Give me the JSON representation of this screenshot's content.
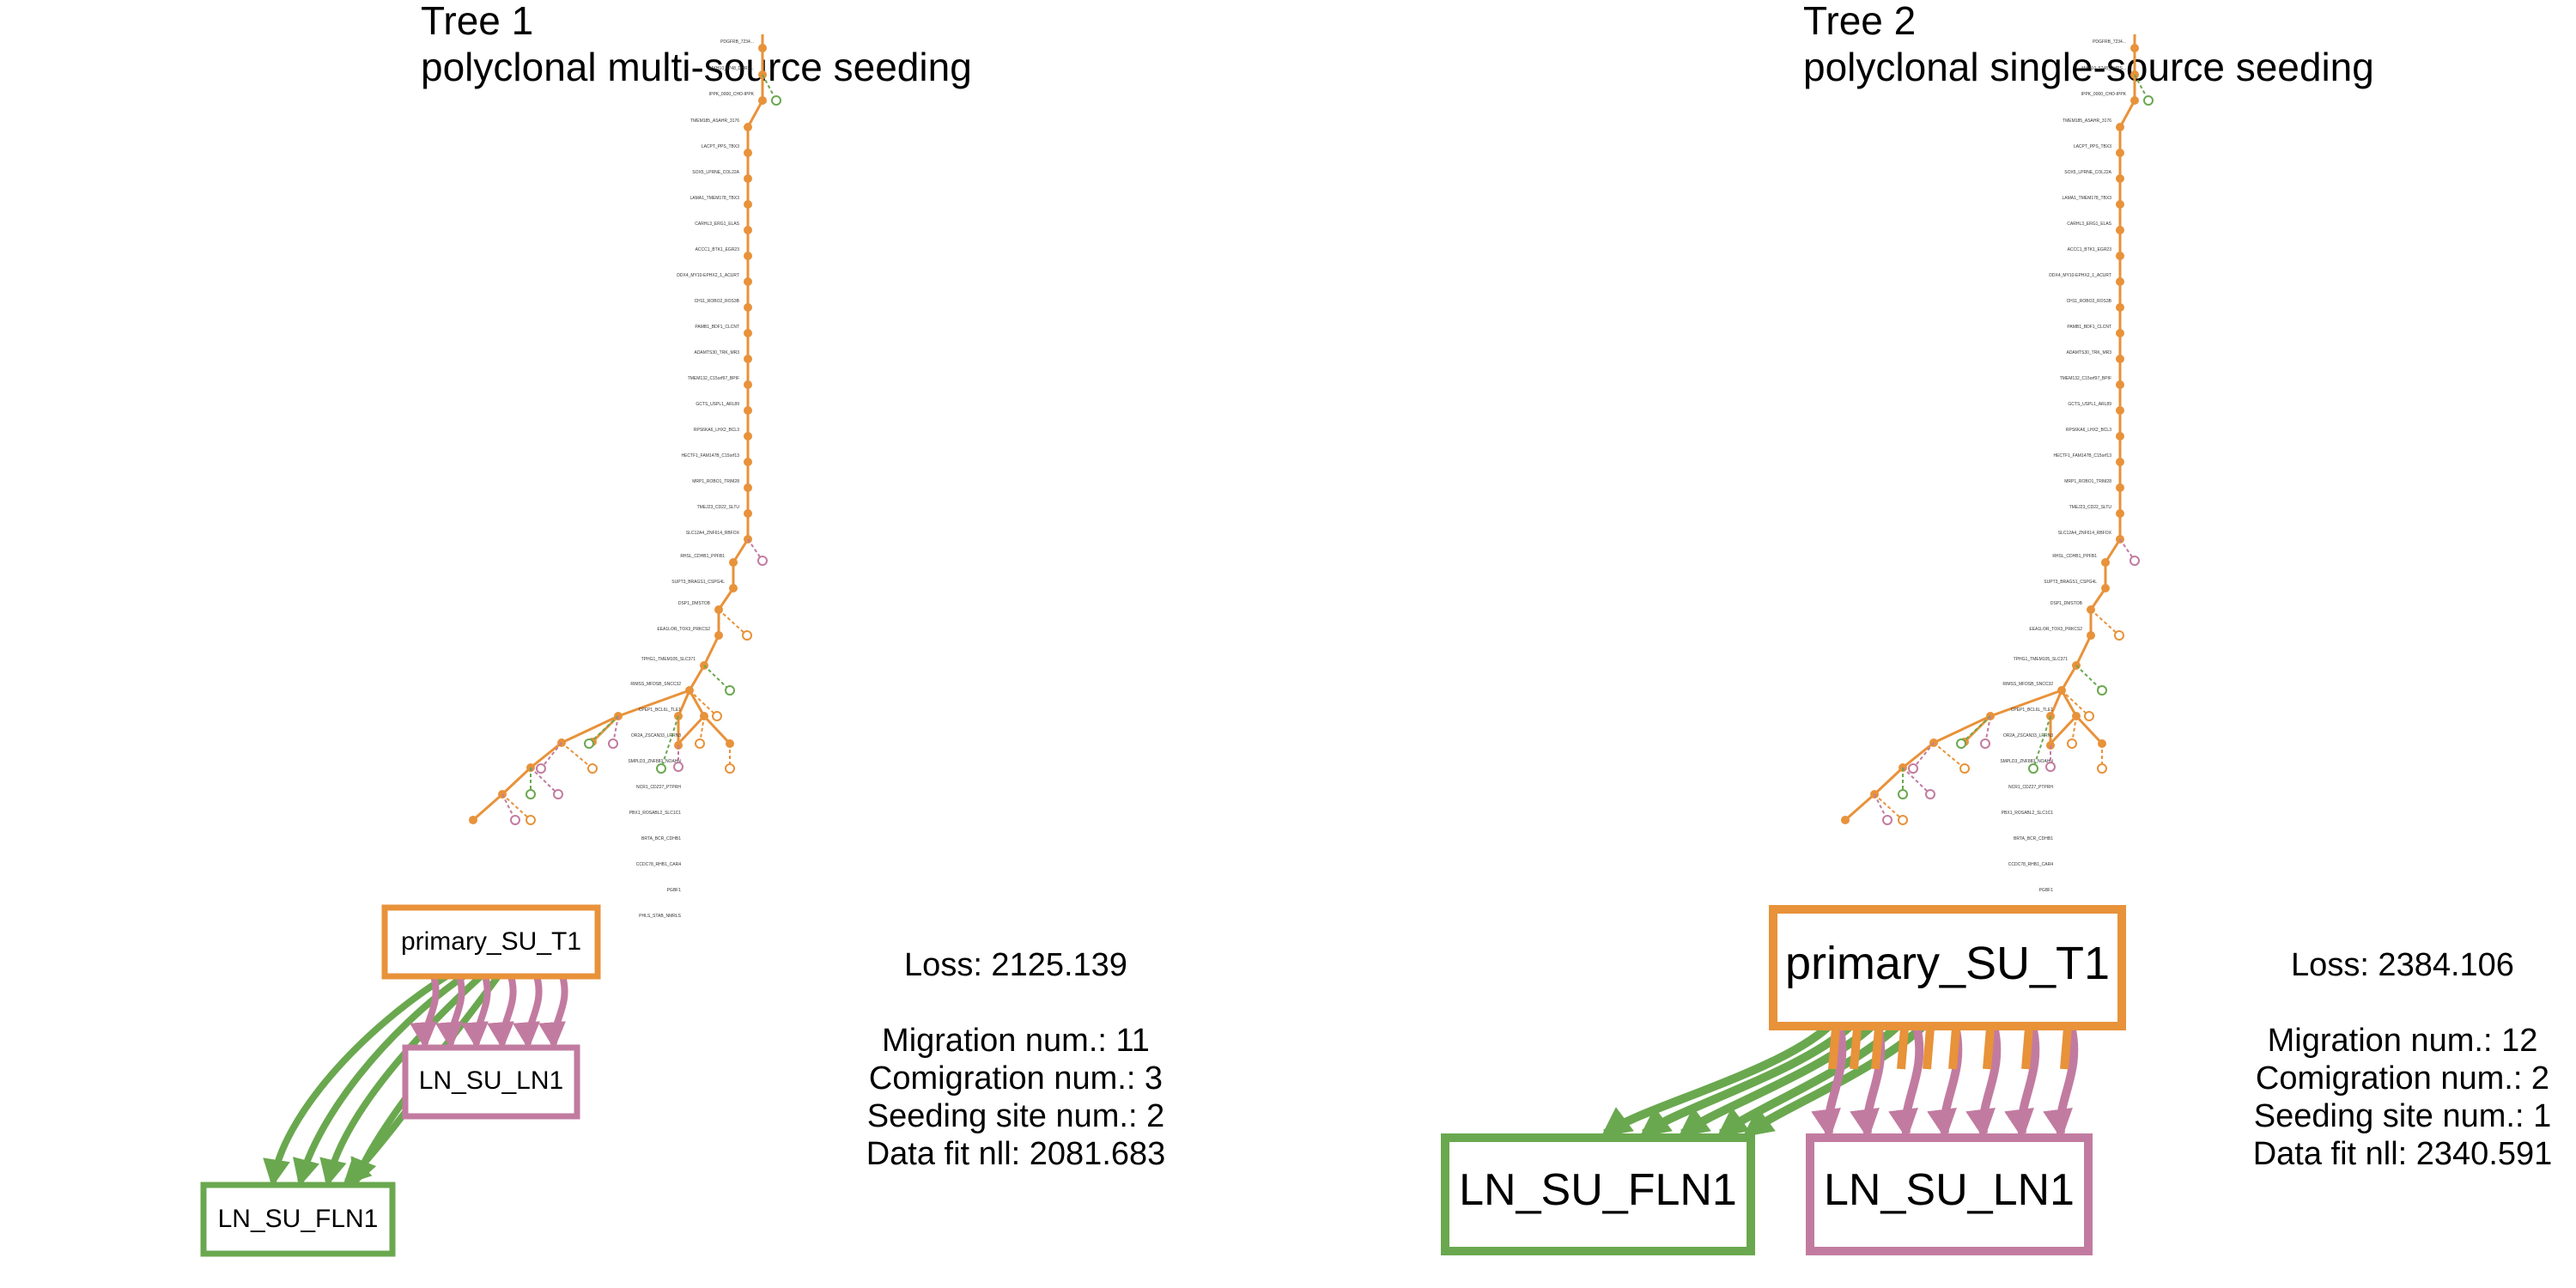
{
  "colors": {
    "primary": "#e8923a",
    "ln_fln1": "#6aa84f",
    "ln_ln1": "#c27ba0",
    "text": "#000000"
  },
  "panels": [
    {
      "title_line1": "Tree 1",
      "title_line2": "polyclonal multi-source seeding",
      "stats": {
        "loss": "Loss: 2125.139",
        "migration": "Migration num.: 11",
        "comigration": "Comigration num.: 3",
        "seeding": "Seeding site num.: 2",
        "datafit": "Data fit nll: 2081.683"
      },
      "graph": {
        "primary": "primary_SU_T1",
        "ln1": "LN_SU_LN1",
        "fln1": "LN_SU_FLN1"
      }
    },
    {
      "title_line1": "Tree 2",
      "title_line2": "polyclonal single-source seeding",
      "stats": {
        "loss": "Loss: 2384.106",
        "migration": "Migration num.: 12",
        "comigration": "Comigration num.: 2",
        "seeding": "Seeding site num.: 1",
        "datafit": "Data fit nll: 2340.591"
      },
      "graph": {
        "primary": "primary_SU_T1",
        "ln1": "LN_SU_LN1",
        "fln1": "LN_SU_FLN1"
      }
    }
  ],
  "tree_labels": [
    "PDGFRB_7234...",
    "MYH10_5748_DHRS...",
    "IPPK_0000_CHO-IPPK",
    "TMEM185_ASAHR_3176",
    "LACPT_PPS_TBX3",
    "SOX5_LPRNE_COL22A",
    "LAMA1_TMEM178_TBX3",
    "CARHL3_ERG1_ELAS",
    "ACCC1_BTK1_EGR23",
    "DDX4_MY10-EPHX2_1_ACURT",
    "CH11_ROBO2_ROS3B",
    "PAMB1_BDF1_CLCNT",
    "ADAMTS30_TRK_MR3",
    "TMEM132_C15orf97_BPIF",
    "GCTS_USPL1_ARL89",
    "RPS6KA6_LHX2_BCL3",
    "HECTF1_FAM147B_C15orf13",
    "MRP1_ROBO1_TRIM28",
    "TMEJ23_CD22_SLTU",
    "SLC12A4_ZNF614_RBFOX",
    "RHSL_CDHB1_PPFB1",
    "SUPT3_BRAGS1_CSPG4L",
    "DSP1_DMSTOB",
    "EEA1LOR_TOX3_PRKCS2",
    "TPHG1_TMEM105_SLC371",
    "RIMSS_MFDSB_SNCC32",
    "CPEP1_BCL6L_TLE1",
    "OR2A_ZSCAN33_LRRN3",
    "SMPLD3_ZNF883_NOAHN",
    "NCR1_CDZ27_PTPRH",
    "PBX1_ROSABL2_SLC1C1",
    "BRTA_BCR_CDHB1",
    "CCDC78_RHB1_CAR4",
    "PGBF1",
    "PHLS_STAB_NMRLS"
  ]
}
